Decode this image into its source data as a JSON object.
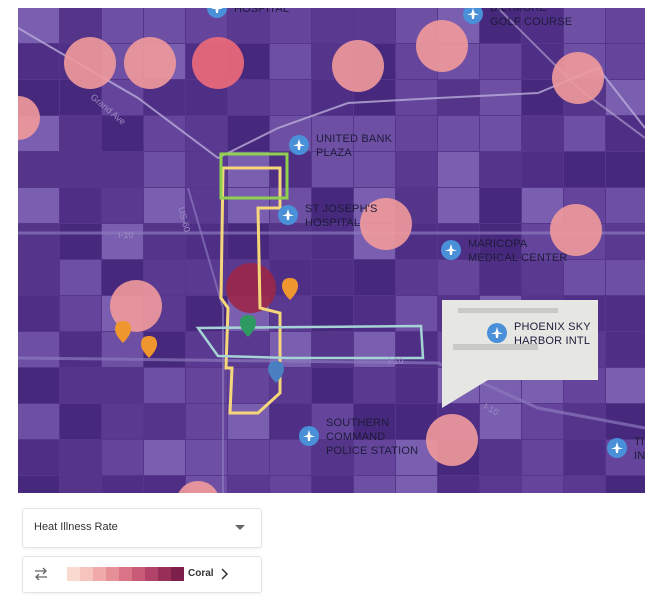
{
  "map": {
    "places": [
      {
        "lines": [
          "HOSPITAL"
        ]
      },
      {
        "lines": [
          "BILTMORE",
          "GOLF COURSE"
        ]
      },
      {
        "lines": [
          "UNITED BANK",
          "PLAZA"
        ]
      },
      {
        "lines": [
          "ST JOSEPH'S",
          "HOSPITAL"
        ]
      },
      {
        "lines": [
          "MARICOPA",
          "MEDICAL CENTER"
        ]
      },
      {
        "lines": [
          "PHOENIX SKY",
          "HARBOR INTL"
        ]
      },
      {
        "lines": [
          "SOUTHERN",
          "COMMAND",
          "POLICE STATION"
        ]
      },
      {
        "lines": [
          "TI",
          "IN"
        ]
      }
    ],
    "roads": [
      "Grand Ave",
      "US-60",
      "I-10",
      "I-10",
      "I-10"
    ]
  },
  "controls": {
    "dropdown": "Heat Illness Rate",
    "palette": "Coral"
  }
}
